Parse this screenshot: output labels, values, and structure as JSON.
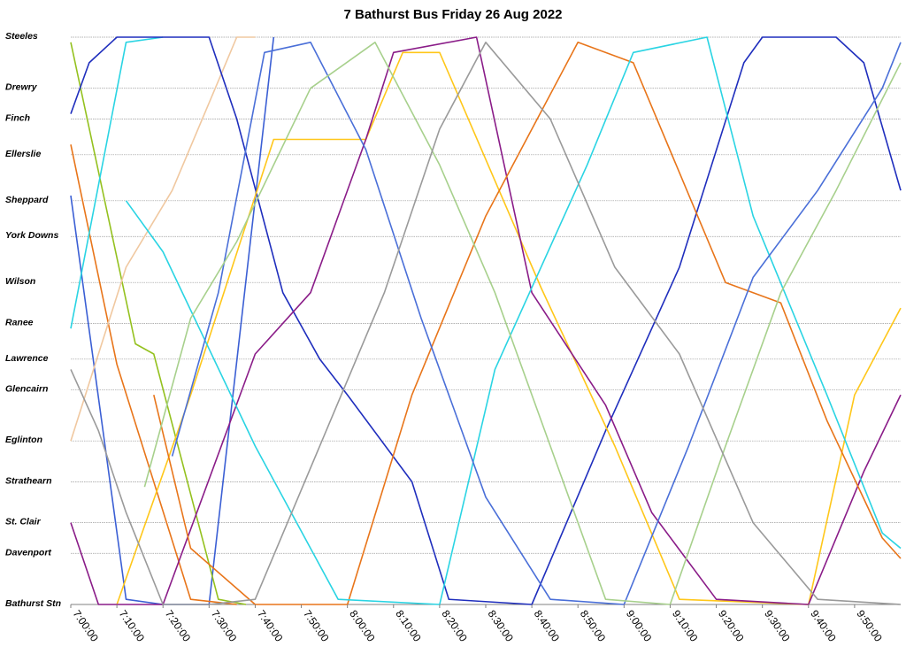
{
  "chart_data": {
    "type": "line",
    "title": "7 Bathurst Bus Friday 26 Aug 2022",
    "xlabel": "",
    "ylabel": "",
    "stops": [
      "Steeles",
      "Drewry",
      "Finch",
      "Ellerslie",
      "Sheppard",
      "York Downs",
      "Wilson",
      "Ranee",
      "Lawrence",
      "Glencairn",
      "Eglinton",
      "Strathearn",
      "St. Clair",
      "Davenport",
      "Bathurst Stn"
    ],
    "stop_km": [
      0,
      1.0,
      1.6,
      2.3,
      3.2,
      3.9,
      4.8,
      5.6,
      6.3,
      6.9,
      7.9,
      8.7,
      9.5,
      10.1,
      11.1
    ],
    "x_ticks": [
      "7:00:00",
      "7:10:00",
      "7:20:00",
      "7:30:00",
      "7:40:00",
      "7:50:00",
      "8:00:00",
      "8:10:00",
      "8:20:00",
      "8:30:00",
      "8:40:00",
      "8:50:00",
      "9:00:00",
      "9:10:00",
      "9:20:00",
      "9:30:00",
      "9:40:00",
      "9:50:00"
    ],
    "x_range": [
      "7:00:00",
      "10:00:00"
    ],
    "grid": true,
    "legend": "none",
    "trips": [
      {
        "color": "#3b5fd4",
        "points": [
          [
            "6:58:00",
            3.1
          ],
          [
            "7:12:00",
            11.0
          ],
          [
            "7:20:00",
            11.1
          ],
          [
            "7:30:00",
            11.1
          ],
          [
            "7:44:00",
            0
          ]
        ]
      },
      {
        "color": "#94c11f",
        "points": [
          [
            "7:00:00",
            0.1
          ],
          [
            "7:14:00",
            6.0
          ],
          [
            "7:18:00",
            6.2
          ],
          [
            "7:32:00",
            11.0
          ],
          [
            "7:38:00",
            11.1
          ]
        ]
      },
      {
        "color": "#e8751a",
        "points": [
          [
            "7:00:00",
            2.1
          ],
          [
            "7:10:00",
            6.4
          ],
          [
            "7:26:00",
            11.0
          ],
          [
            "7:36:00",
            11.1
          ]
        ]
      },
      {
        "color": "#2ad4e3",
        "points": [
          [
            "7:00:00",
            5.7
          ],
          [
            "7:12:00",
            0.1
          ],
          [
            "7:20:00",
            0
          ]
        ]
      },
      {
        "color": "#f0c8a0",
        "points": [
          [
            "7:00:00",
            7.9
          ],
          [
            "7:12:00",
            4.5
          ],
          [
            "7:22:00",
            3.0
          ],
          [
            "7:36:00",
            0
          ],
          [
            "7:40:00",
            0
          ]
        ]
      },
      {
        "color": "#1f2ebd",
        "points": [
          [
            "7:00:00",
            1.5
          ],
          [
            "7:04:00",
            0.5
          ],
          [
            "7:10:00",
            0
          ],
          [
            "7:30:00",
            0
          ],
          [
            "7:36:00",
            1.6
          ],
          [
            "7:46:00",
            5.0
          ],
          [
            "7:54:00",
            6.3
          ],
          [
            "8:00:00",
            7.0
          ],
          [
            "8:14:00",
            8.7
          ],
          [
            "8:22:00",
            11.0
          ],
          [
            "8:40:00",
            11.1
          ],
          [
            "8:56:00",
            7.7
          ],
          [
            "9:12:00",
            4.5
          ],
          [
            "9:26:00",
            0.5
          ],
          [
            "9:30:00",
            0
          ],
          [
            "9:46:00",
            0
          ],
          [
            "9:52:00",
            0.5
          ],
          [
            "10:00:00",
            3.0
          ]
        ]
      },
      {
        "color": "#ffc71a",
        "points": [
          [
            "7:10:00",
            11.1
          ],
          [
            "7:26:00",
            7.0
          ],
          [
            "7:44:00",
            2.0
          ],
          [
            "8:04:00",
            2.0
          ],
          [
            "8:12:00",
            0.3
          ],
          [
            "8:20:00",
            0.3
          ],
          [
            "8:42:00",
            4.9
          ],
          [
            "8:58:00",
            8.0
          ],
          [
            "9:12:00",
            11.0
          ],
          [
            "9:40:00",
            11.1
          ],
          [
            "9:50:00",
            7.0
          ],
          [
            "10:00:00",
            5.3
          ]
        ]
      },
      {
        "color": "#8a1c88",
        "points": [
          [
            "7:00:00",
            9.5
          ],
          [
            "7:06:00",
            11.1
          ],
          [
            "7:20:00",
            11.1
          ],
          [
            "7:40:00",
            6.2
          ],
          [
            "7:52:00",
            5.0
          ],
          [
            "8:04:00",
            2.0
          ],
          [
            "8:10:00",
            0.3
          ],
          [
            "8:28:00",
            0
          ],
          [
            "8:40:00",
            5.0
          ],
          [
            "8:56:00",
            7.2
          ],
          [
            "9:06:00",
            9.3
          ],
          [
            "9:20:00",
            11.0
          ],
          [
            "9:40:00",
            11.1
          ],
          [
            "9:52:00",
            8.5
          ],
          [
            "10:00:00",
            7.0
          ]
        ]
      },
      {
        "color": "#e8751a",
        "points": [
          [
            "7:18:00",
            7.0
          ],
          [
            "7:26:00",
            10.0
          ],
          [
            "7:40:00",
            11.1
          ],
          [
            "8:00:00",
            11.1
          ],
          [
            "8:14:00",
            7.0
          ],
          [
            "8:30:00",
            3.5
          ],
          [
            "8:50:00",
            0.1
          ],
          [
            "9:02:00",
            0.5
          ],
          [
            "9:22:00",
            4.8
          ],
          [
            "9:34:00",
            5.2
          ],
          [
            "9:44:00",
            7.5
          ],
          [
            "9:56:00",
            9.8
          ],
          [
            "10:00:00",
            10.2
          ]
        ]
      },
      {
        "color": "#2ad4e3",
        "points": [
          [
            "7:12:00",
            3.2
          ],
          [
            "7:20:00",
            4.2
          ],
          [
            "7:40:00",
            8.0
          ],
          [
            "7:58:00",
            11.0
          ],
          [
            "8:20:00",
            11.1
          ],
          [
            "8:32:00",
            6.5
          ],
          [
            "8:52:00",
            2.5
          ],
          [
            "9:02:00",
            0.3
          ],
          [
            "9:18:00",
            0
          ],
          [
            "9:28:00",
            3.5
          ],
          [
            "9:44:00",
            7.0
          ],
          [
            "9:56:00",
            9.7
          ],
          [
            "10:00:00",
            10.0
          ]
        ]
      },
      {
        "color": "#4a6fd8",
        "points": [
          [
            "7:22:00",
            8.2
          ],
          [
            "7:32:00",
            5.0
          ],
          [
            "7:42:00",
            0.3
          ],
          [
            "7:52:00",
            0.1
          ],
          [
            "8:04:00",
            2.2
          ],
          [
            "8:16:00",
            5.5
          ],
          [
            "8:30:00",
            9.0
          ],
          [
            "8:44:00",
            11.0
          ],
          [
            "9:00:00",
            11.1
          ],
          [
            "9:14:00",
            8.0
          ],
          [
            "9:28:00",
            4.7
          ],
          [
            "9:42:00",
            3.0
          ],
          [
            "9:56:00",
            1.0
          ],
          [
            "10:00:00",
            0.1
          ]
        ]
      },
      {
        "color": "#a7d08c",
        "points": [
          [
            "7:16:00",
            8.8
          ],
          [
            "7:26:00",
            5.5
          ],
          [
            "7:36:00",
            4.0
          ],
          [
            "7:52:00",
            1.0
          ],
          [
            "8:06:00",
            0.1
          ],
          [
            "8:20:00",
            2.5
          ],
          [
            "8:32:00",
            5.0
          ],
          [
            "8:44:00",
            8.0
          ],
          [
            "8:56:00",
            11.0
          ],
          [
            "9:10:00",
            11.1
          ],
          [
            "9:22:00",
            8.0
          ],
          [
            "9:34:00",
            5.0
          ],
          [
            "9:46:00",
            3.0
          ],
          [
            "10:00:00",
            0.5
          ]
        ]
      },
      {
        "color": "#9a9a9a",
        "points": [
          [
            "7:00:00",
            6.5
          ],
          [
            "7:06:00",
            7.7
          ],
          [
            "7:12:00",
            9.3
          ],
          [
            "7:20:00",
            11.1
          ],
          [
            "7:30:00",
            11.1
          ],
          [
            "7:40:00",
            11.0
          ],
          [
            "7:54:00",
            8.0
          ],
          [
            "8:08:00",
            5.0
          ],
          [
            "8:20:00",
            1.8
          ],
          [
            "8:30:00",
            0.1
          ],
          [
            "8:44:00",
            1.6
          ],
          [
            "8:58:00",
            4.5
          ],
          [
            "9:12:00",
            6.2
          ],
          [
            "9:28:00",
            9.5
          ],
          [
            "9:42:00",
            11.0
          ],
          [
            "10:00:00",
            11.1
          ]
        ]
      }
    ]
  }
}
